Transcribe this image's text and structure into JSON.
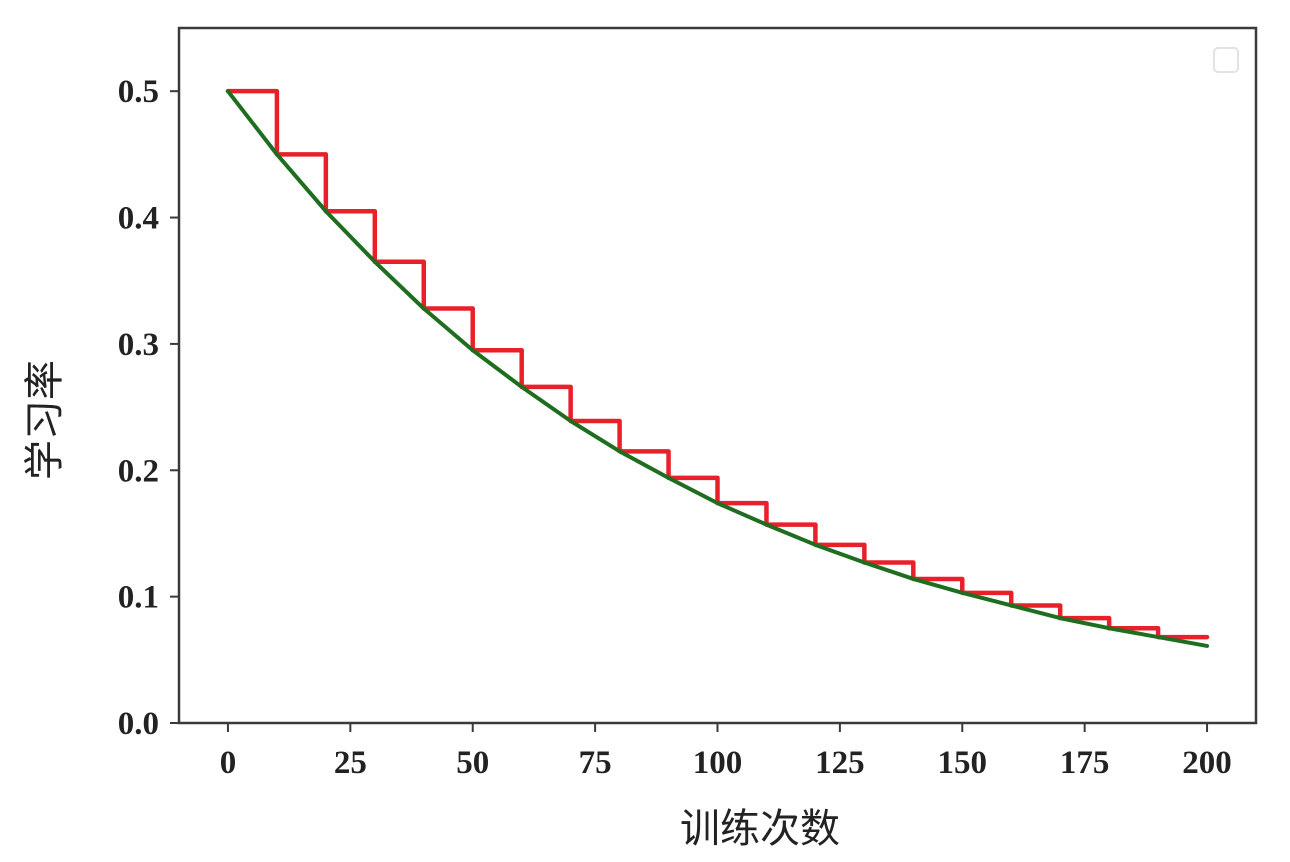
{
  "chart_data": {
    "type": "line",
    "title": "",
    "xlabel": "训练次数",
    "ylabel": "学习率",
    "xlim": [
      -10,
      210
    ],
    "ylim": [
      0,
      0.55
    ],
    "xticks": [
      0,
      25,
      50,
      75,
      100,
      125,
      150,
      175,
      200
    ],
    "yticks": [
      0.0,
      0.1,
      0.2,
      0.3,
      0.4,
      0.5
    ],
    "xtick_labels": [
      "0",
      "25",
      "50",
      "75",
      "100",
      "125",
      "150",
      "175",
      "200"
    ],
    "ytick_labels": [
      "0.0",
      "0.1",
      "0.2",
      "0.3",
      "0.4",
      "0.5"
    ],
    "grid": false,
    "legend": "top-right, empty",
    "series": [
      {
        "style": "step",
        "color": "#e8202a",
        "x": [
          0,
          10,
          20,
          30,
          40,
          50,
          60,
          70,
          80,
          90,
          100,
          110,
          120,
          130,
          140,
          150,
          160,
          170,
          180,
          190,
          200
        ],
        "values": [
          0.5,
          0.45,
          0.405,
          0.365,
          0.328,
          0.295,
          0.266,
          0.239,
          0.215,
          0.194,
          0.174,
          0.157,
          0.141,
          0.127,
          0.114,
          0.103,
          0.093,
          0.083,
          0.075,
          0.068,
          0.068
        ]
      },
      {
        "style": "smooth",
        "color": "#1f6e1f",
        "x": [
          0,
          10,
          20,
          30,
          40,
          50,
          60,
          70,
          80,
          90,
          100,
          110,
          120,
          130,
          140,
          150,
          160,
          170,
          180,
          190,
          200
        ],
        "values": [
          0.5,
          0.45,
          0.405,
          0.365,
          0.328,
          0.295,
          0.266,
          0.239,
          0.215,
          0.194,
          0.174,
          0.157,
          0.141,
          0.127,
          0.114,
          0.103,
          0.093,
          0.083,
          0.075,
          0.068,
          0.061
        ]
      }
    ]
  }
}
